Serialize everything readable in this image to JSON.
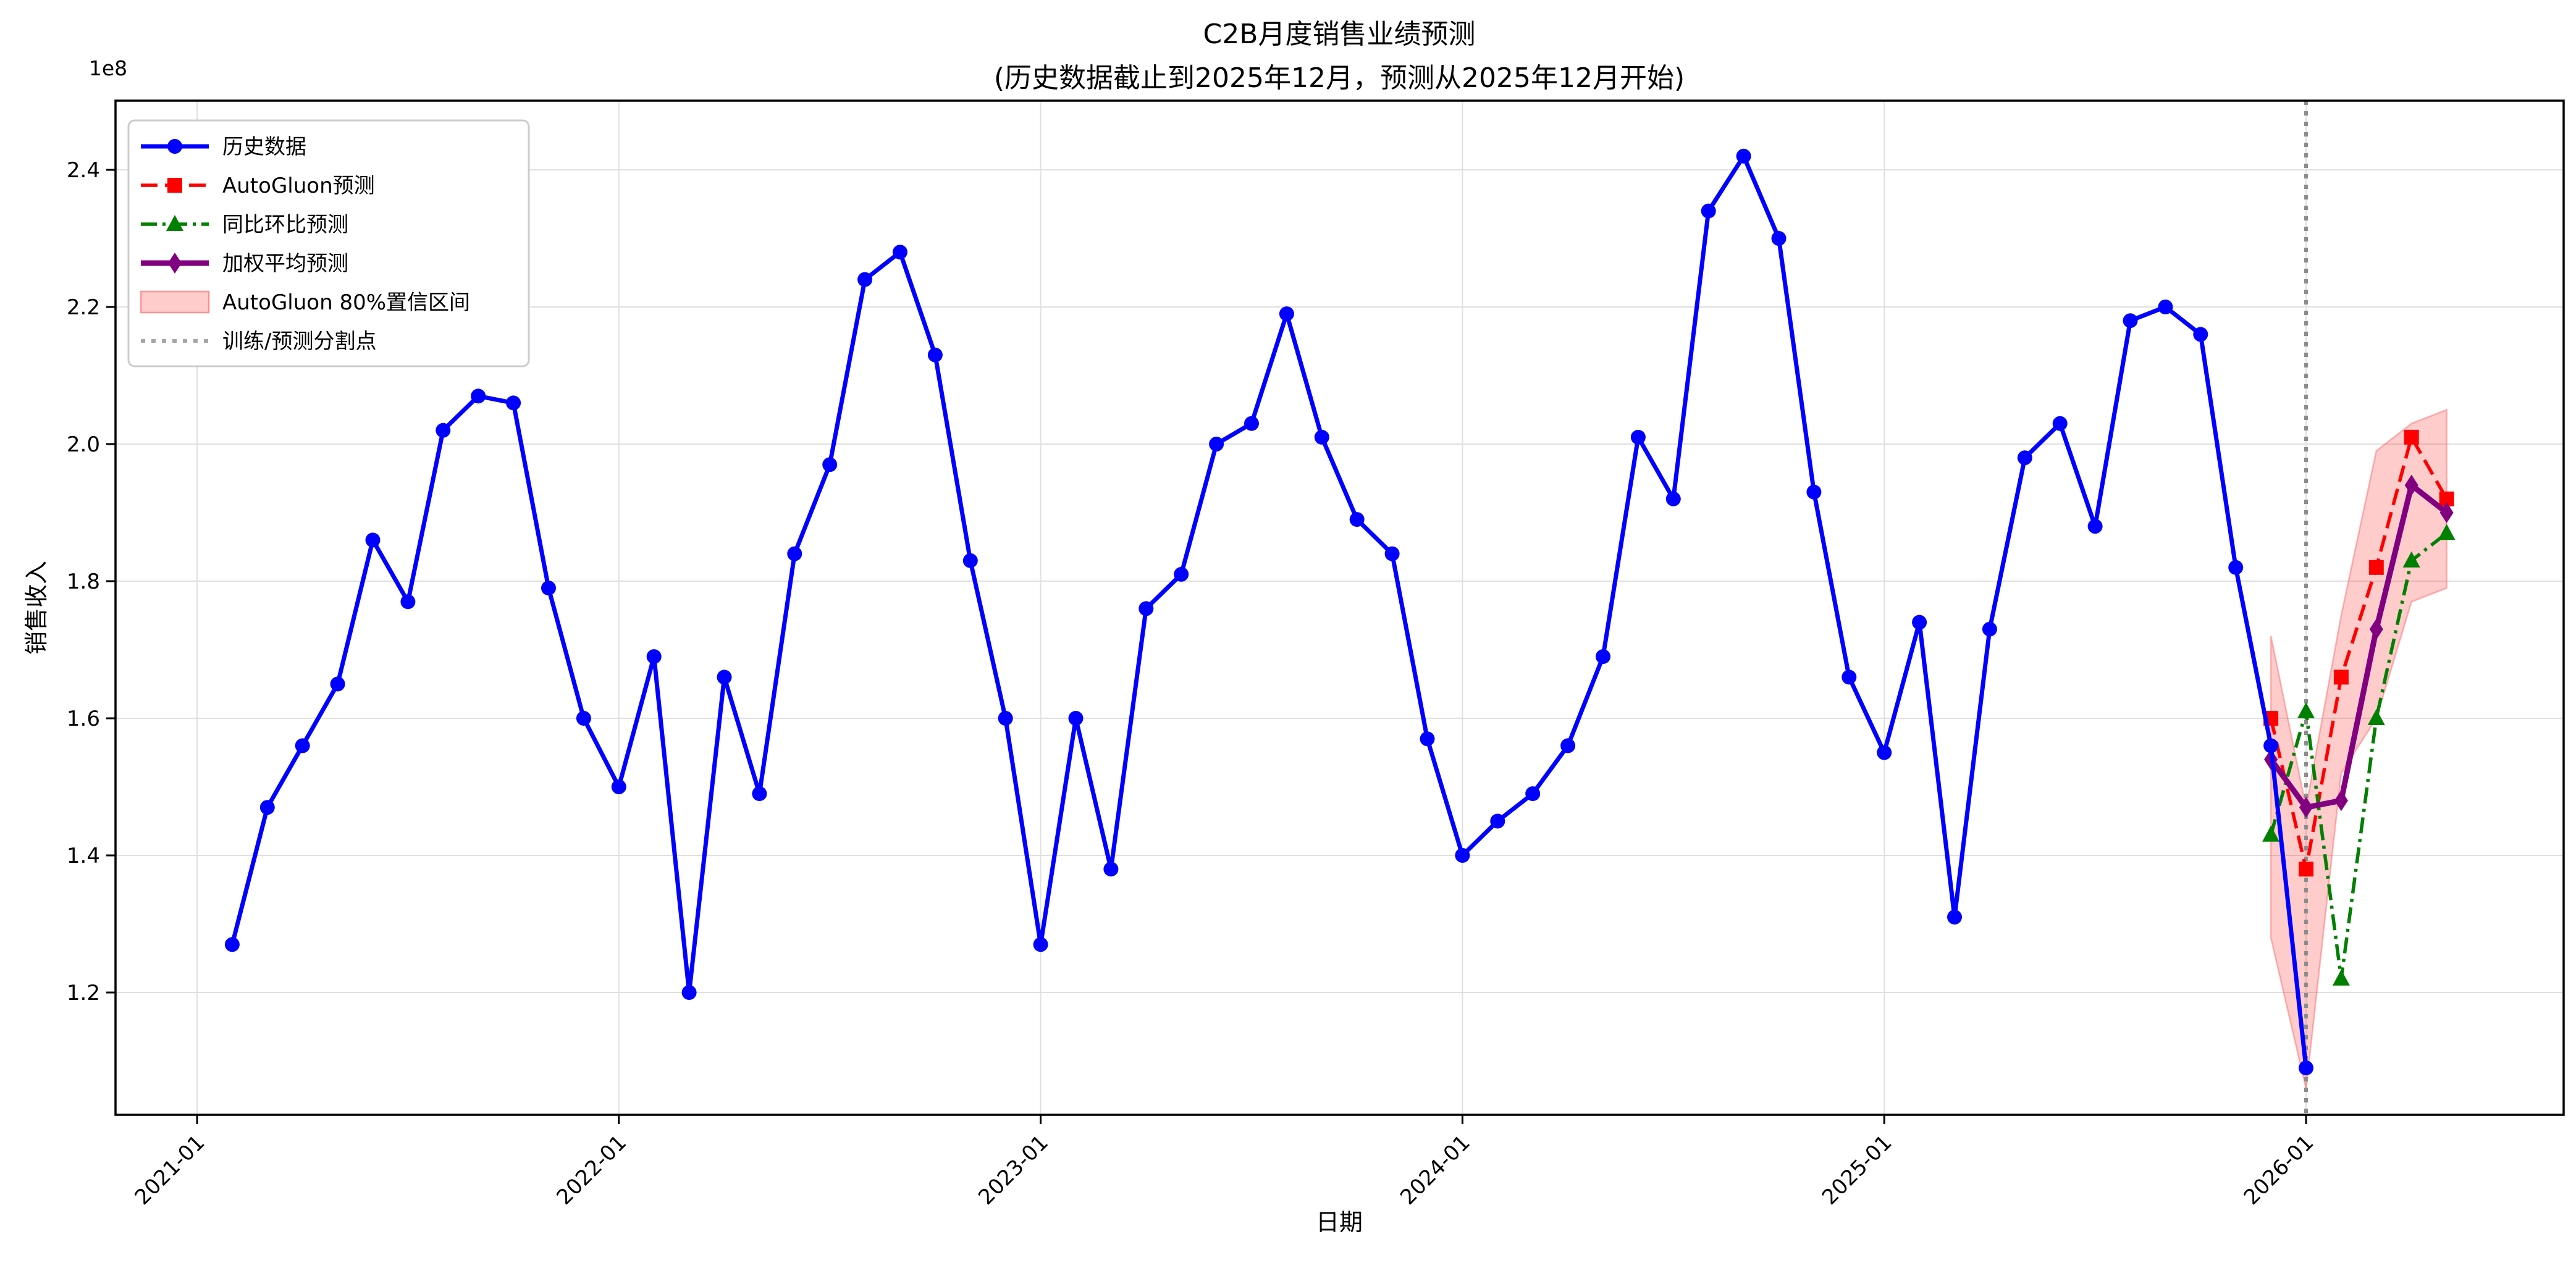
{
  "chart_data": {
    "type": "line",
    "title": "C2B月度销售业绩预测",
    "subtitle": "(历史数据截止到2025年12月，预测从2025年12月开始)",
    "xlabel": "日期",
    "ylabel": "销售收入",
    "y_offset_label": "1e8",
    "y_unit_multiplier": 100000000,
    "grid": true,
    "legend_position": "upper left",
    "x_ticks": [
      "2021-01",
      "2022-01",
      "2023-01",
      "2024-01",
      "2025-01",
      "2026-01"
    ],
    "y_ticks": [
      "1.2",
      "1.4",
      "1.6",
      "1.8",
      "2.0",
      "2.2",
      "2.4"
    ],
    "ylim": [
      1.02,
      2.5
    ],
    "split_line": {
      "label": "训练/预测分割点",
      "position": "2025-12-31",
      "color": "#8c8c8c",
      "style": "dotted"
    },
    "historical": {
      "label": "历史数据",
      "color": "#0000ff",
      "marker": "circle",
      "line_style": "solid",
      "months": [
        "2021-01",
        "2021-02",
        "2021-03",
        "2021-04",
        "2021-05",
        "2021-06",
        "2021-07",
        "2021-08",
        "2021-09",
        "2021-10",
        "2021-11",
        "2021-12",
        "2022-01",
        "2022-02",
        "2022-03",
        "2022-04",
        "2022-05",
        "2022-06",
        "2022-07",
        "2022-08",
        "2022-09",
        "2022-10",
        "2022-11",
        "2022-12",
        "2023-01",
        "2023-02",
        "2023-03",
        "2023-04",
        "2023-05",
        "2023-06",
        "2023-07",
        "2023-08",
        "2023-09",
        "2023-10",
        "2023-11",
        "2023-12",
        "2024-01",
        "2024-02",
        "2024-03",
        "2024-04",
        "2024-05",
        "2024-06",
        "2024-07",
        "2024-08",
        "2024-09",
        "2024-10",
        "2024-11",
        "2024-12",
        "2025-01",
        "2025-02",
        "2025-03",
        "2025-04",
        "2025-05",
        "2025-06",
        "2025-07",
        "2025-08",
        "2025-09",
        "2025-10",
        "2025-11",
        "2025-12"
      ],
      "values_1e8": [
        1.27,
        1.47,
        1.56,
        1.65,
        1.86,
        1.77,
        2.02,
        2.07,
        2.06,
        1.79,
        1.6,
        1.5,
        1.69,
        1.2,
        1.66,
        1.49,
        1.84,
        1.97,
        2.24,
        2.28,
        2.13,
        1.83,
        1.6,
        1.27,
        1.6,
        1.38,
        1.76,
        1.81,
        2.0,
        2.03,
        2.19,
        2.01,
        1.89,
        1.84,
        1.57,
        1.4,
        1.45,
        1.49,
        1.56,
        1.69,
        2.01,
        1.92,
        2.34,
        2.42,
        2.3,
        1.93,
        1.66,
        1.55,
        1.74,
        1.31,
        1.73,
        1.98,
        2.03,
        1.88,
        2.18,
        2.2,
        2.16,
        1.82,
        1.56,
        1.09
      ]
    },
    "forecast_months": [
      "2025-12",
      "2026-01",
      "2026-02",
      "2026-03",
      "2026-04",
      "2026-05"
    ],
    "forecasts": [
      {
        "label": "AutoGluon预测",
        "color": "#ff0000",
        "marker": "square",
        "line_style": "dashed",
        "values_1e8": [
          1.6,
          1.38,
          1.66,
          1.82,
          2.01,
          1.92
        ]
      },
      {
        "label": "同比环比预测",
        "color": "#008000",
        "marker": "triangle",
        "line_style": "dashdot",
        "values_1e8": [
          1.43,
          1.61,
          1.22,
          1.6,
          1.83,
          1.87
        ]
      },
      {
        "label": "加权平均预测",
        "color": "#800080",
        "marker": "thin-diamond",
        "line_style": "solid",
        "values_1e8": [
          1.54,
          1.47,
          1.48,
          1.73,
          1.94,
          1.9
        ]
      }
    ],
    "confidence_band": {
      "label": "AutoGluon 80%置信区间",
      "color": "#ff0000",
      "opacity": 0.2,
      "months": [
        "2025-12",
        "2026-01",
        "2026-02",
        "2026-03",
        "2026-04",
        "2026-05"
      ],
      "lower_1e8": [
        1.28,
        1.06,
        1.52,
        1.6,
        1.77,
        1.79
      ],
      "upper_1e8": [
        1.72,
        1.47,
        1.75,
        1.99,
        2.03,
        2.05
      ]
    },
    "legend": [
      {
        "label": "历史数据"
      },
      {
        "label": "AutoGluon预测"
      },
      {
        "label": "同比环比预测"
      },
      {
        "label": "加权平均预测"
      },
      {
        "label": "AutoGluon 80%置信区间"
      },
      {
        "label": "训练/预测分割点"
      }
    ]
  }
}
